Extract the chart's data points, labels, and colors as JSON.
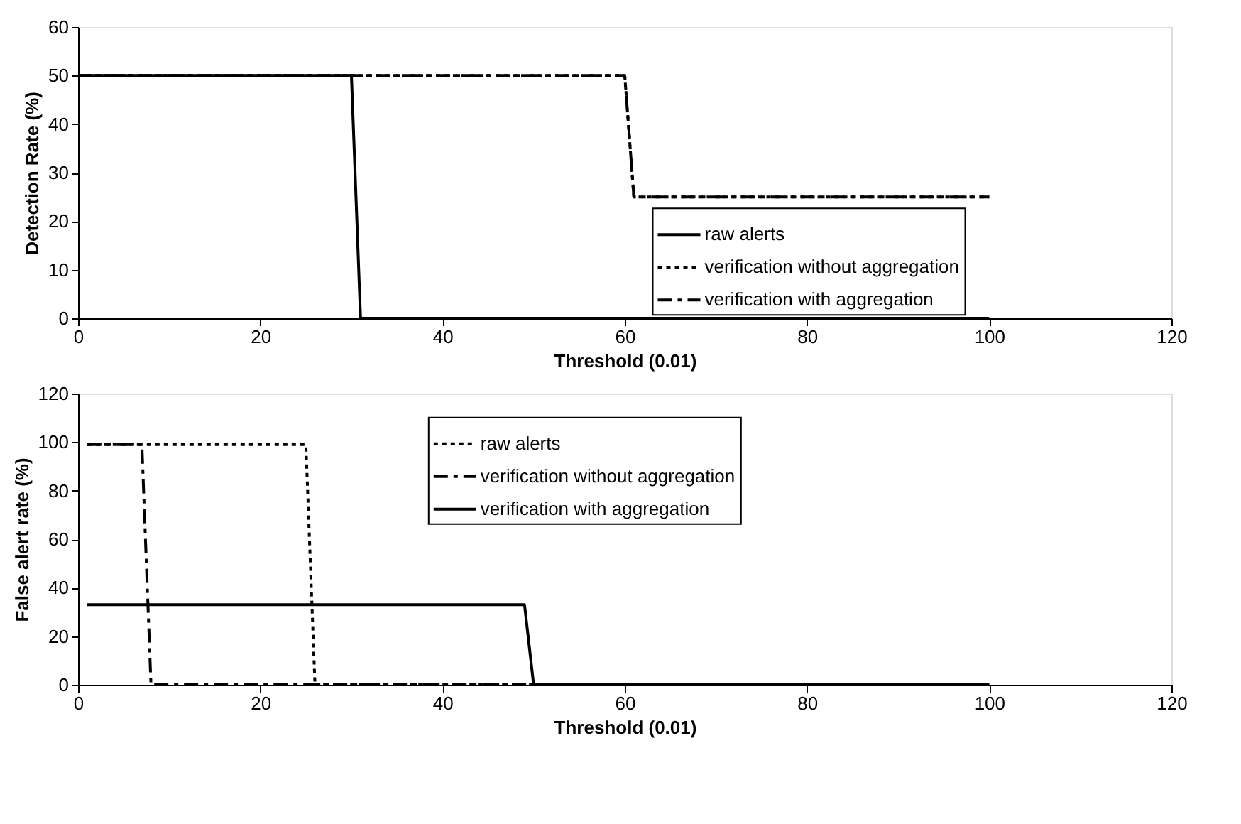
{
  "chart_data": [
    {
      "type": "line",
      "xlabel": "Threshold (0.01)",
      "ylabel": "Detection Rate (%)",
      "xlim": [
        0,
        120
      ],
      "xticks": [
        0,
        20,
        40,
        60,
        80,
        100,
        120
      ],
      "ylim": [
        0,
        60
      ],
      "yticks": [
        0,
        10,
        20,
        30,
        40,
        50,
        60
      ],
      "grid": false,
      "legend": "bottom right",
      "marker": "none",
      "series": [
        {
          "name": "raw alerts",
          "color": "#000000",
          "line_style": "solid",
          "x": [
            0,
            30,
            31,
            100
          ],
          "values": [
            50,
            50,
            0,
            0
          ]
        },
        {
          "name": "verification without aggregation",
          "color": "#000000",
          "line_style": "dotted",
          "x": [
            0,
            60,
            61,
            100
          ],
          "values": [
            50,
            50,
            25,
            25
          ]
        },
        {
          "name": "verification with aggregation",
          "color": "#000000",
          "line_style": "dashed",
          "x": [
            0,
            60,
            61,
            100
          ],
          "values": [
            50,
            50,
            25,
            25
          ]
        }
      ]
    },
    {
      "type": "line",
      "xlabel": "Threshold (0.01)",
      "ylabel": "False alert rate (%)",
      "xlim": [
        0,
        120
      ],
      "xticks": [
        0,
        20,
        40,
        60,
        80,
        100,
        120
      ],
      "ylim": [
        0,
        120
      ],
      "yticks": [
        0,
        20,
        40,
        60,
        80,
        100,
        120
      ],
      "grid": false,
      "legend": "top",
      "marker": "none",
      "series": [
        {
          "name": "raw alerts",
          "color": "#000000",
          "line_style": "dotted",
          "x": [
            1,
            25,
            26,
            100
          ],
          "values": [
            99,
            99,
            0,
            0
          ]
        },
        {
          "name": "verification without aggregation",
          "color": "#000000",
          "line_style": "dashed",
          "x": [
            1,
            7,
            8,
            100
          ],
          "values": [
            99,
            99,
            0,
            0
          ]
        },
        {
          "name": "verification with aggregation",
          "color": "#000000",
          "line_style": "solid",
          "x": [
            1,
            49,
            50,
            100
          ],
          "values": [
            33,
            33,
            0,
            0
          ]
        }
      ]
    }
  ]
}
